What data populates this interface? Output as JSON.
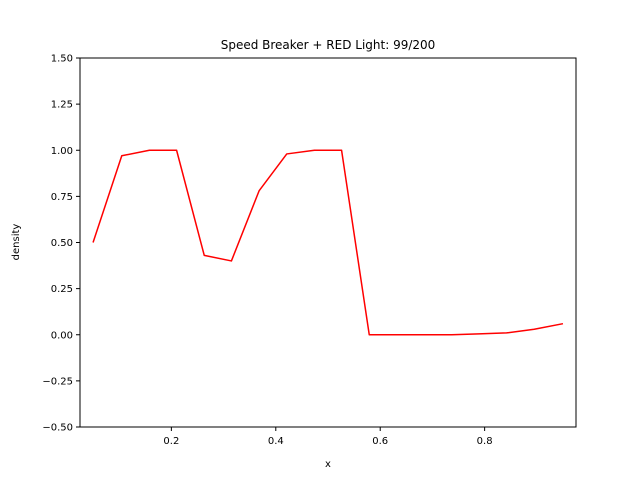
{
  "chart_data": {
    "type": "line",
    "title": "Speed Breaker + RED Light: 99/200",
    "xlabel": "x",
    "ylabel": "density",
    "xlim": [
      0.025,
      0.975
    ],
    "ylim": [
      -0.5,
      1.5
    ],
    "xticks": [
      0.2,
      0.4,
      0.6,
      0.8
    ],
    "xtick_labels": [
      "0.2",
      "0.4",
      "0.6",
      "0.8"
    ],
    "yticks": [
      -0.5,
      -0.25,
      0.0,
      0.25,
      0.5,
      0.75,
      1.0,
      1.25,
      1.5
    ],
    "ytick_labels": [
      "−0.50",
      "−0.25",
      "0.00",
      "0.25",
      "0.50",
      "0.75",
      "1.00",
      "1.25",
      "1.50"
    ],
    "grid": false,
    "legend": "none",
    "series": [
      {
        "color": "#ff0000",
        "x": [
          0.05,
          0.105,
          0.158,
          0.21,
          0.263,
          0.315,
          0.368,
          0.421,
          0.474,
          0.526,
          0.579,
          0.632,
          0.684,
          0.737,
          0.789,
          0.842,
          0.895,
          0.95
        ],
        "y": [
          0.5,
          0.97,
          1.0,
          1.0,
          0.43,
          0.4,
          0.78,
          0.98,
          1.0,
          1.0,
          0.0,
          0.0,
          0.0,
          0.0,
          0.005,
          0.01,
          0.03,
          0.06
        ]
      }
    ]
  }
}
